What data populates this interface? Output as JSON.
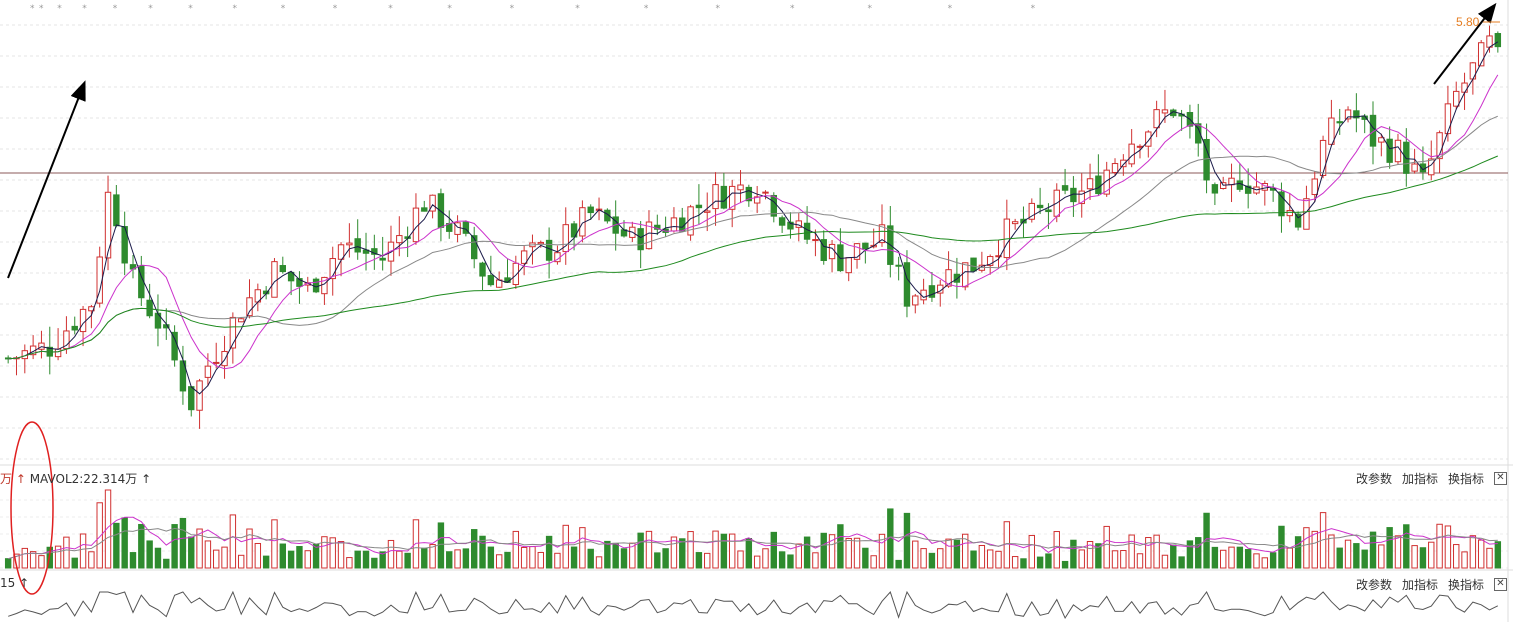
{
  "chart_data": [
    {
      "type": "candlestick",
      "title": "",
      "price_marker": "5.80",
      "reference_line": "horizontal",
      "moving_averages": [
        {
          "color": "#1a1a4a"
        },
        {
          "color": "#cc33cc"
        },
        {
          "color": "#888888"
        },
        {
          "color": "#1e8a1e"
        }
      ],
      "candle_count": 180,
      "trend_points": [
        [
          0,
          1.0
        ],
        [
          5,
          1.2
        ],
        [
          10,
          1.9
        ],
        [
          12,
          3.6
        ],
        [
          13,
          3.3
        ],
        [
          15,
          2.2
        ],
        [
          18,
          1.6
        ],
        [
          22,
          0.3
        ],
        [
          24,
          0.9
        ],
        [
          28,
          1.8
        ],
        [
          32,
          2.4
        ],
        [
          36,
          2.1
        ],
        [
          40,
          2.8
        ],
        [
          45,
          2.6
        ],
        [
          50,
          3.5
        ],
        [
          54,
          3.0
        ],
        [
          58,
          2.2
        ],
        [
          62,
          2.6
        ],
        [
          66,
          2.8
        ],
        [
          70,
          3.3
        ],
        [
          75,
          2.9
        ],
        [
          80,
          3.2
        ],
        [
          85,
          3.6
        ],
        [
          90,
          3.8
        ],
        [
          95,
          3.0
        ],
        [
          100,
          2.6
        ],
        [
          105,
          2.9
        ],
        [
          108,
          2.0
        ],
        [
          112,
          2.3
        ],
        [
          116,
          2.5
        ],
        [
          120,
          3.0
        ],
        [
          125,
          3.4
        ],
        [
          130,
          3.7
        ],
        [
          135,
          4.5
        ],
        [
          140,
          5.0
        ],
        [
          143,
          4.4
        ],
        [
          145,
          3.4
        ],
        [
          148,
          3.9
        ],
        [
          152,
          3.6
        ],
        [
          155,
          3.2
        ],
        [
          158,
          4.4
        ],
        [
          161,
          5.0
        ],
        [
          164,
          4.5
        ],
        [
          167,
          4.3
        ],
        [
          170,
          3.8
        ],
        [
          174,
          5.2
        ],
        [
          178,
          6.0
        ],
        [
          180,
          5.5
        ]
      ],
      "annotation": "red ellipse around early volume spike"
    },
    {
      "type": "bar",
      "label": "MAVOL2:22.314万",
      "label_prefix": "万 ↑",
      "up_color": "#d03030",
      "down_color": "#2e8b2e"
    },
    {
      "type": "line",
      "label": "15 ↑"
    }
  ],
  "toolbar_volume": {
    "params": "改参数",
    "add": "加指标",
    "switch": "换指标",
    "close": "✕"
  },
  "toolbar_indicator": {
    "params": "改参数",
    "add": "加指标",
    "switch": "换指标",
    "close": "✕"
  }
}
